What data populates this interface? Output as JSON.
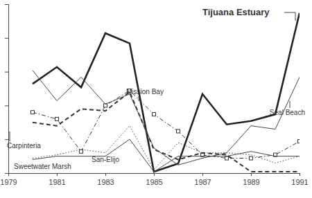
{
  "chart_data": {
    "type": "line",
    "x": [
      1980,
      1981,
      1982,
      1983,
      1984,
      1985,
      1986,
      1987,
      1988,
      1989,
      1990,
      1991
    ],
    "xlim": [
      1979,
      1991
    ],
    "xticks": [
      1979,
      1981,
      1983,
      1985,
      1987,
      1989,
      1991
    ],
    "ylim": [
      0,
      5
    ],
    "yticks": [
      0,
      1,
      2,
      3,
      4
    ],
    "tick_labels": "x",
    "series": [
      {
        "name": "Tijuana Estuary",
        "color": "#222222",
        "line_style": "solid",
        "values": [
          2.64,
          3.14,
          2.54,
          4.14,
          3.84,
          0.04,
          0.28,
          2.34,
          1.44,
          1.54,
          1.74,
          4.74
        ]
      },
      {
        "name": "Mission Bay",
        "color": "#333333",
        "line_style": "dashdot",
        "marker": "square",
        "values": [
          1.8,
          1.6,
          0.64,
          2.0,
          2.44,
          1.74,
          1.24,
          0.54,
          0.44,
          0.44,
          0.54,
          0.94
        ]
      },
      {
        "name": "Carpinteria",
        "color": "#333333",
        "line_style": "dashed",
        "values": [
          1.5,
          1.4,
          1.9,
          1.84,
          2.4,
          0.7,
          0.4,
          0.6,
          0.54,
          0.04,
          0.04,
          0.04
        ]
      },
      {
        "name": "Seal Beach",
        "color": "#444444",
        "line_style": "solid",
        "values": [
          3.04,
          2.14,
          2.84,
          2.04,
          2.34,
          0.74,
          0.24,
          0.44,
          0.6,
          1.4,
          1.3,
          2.84
        ]
      },
      {
        "name": "San-Elijo",
        "color": "#444444",
        "line_style": "dotted",
        "values": [
          0.44,
          0.54,
          0.7,
          0.6,
          1.4,
          0.1,
          0.9,
          0.6,
          0.6,
          0.54,
          0.3,
          0.5
        ]
      },
      {
        "name": "Sweetwater Marsh",
        "color": "#444444",
        "line_style": "solid",
        "values": [
          0.4,
          0.5,
          0.5,
          0.5,
          1.0,
          0.04,
          0.5,
          0.5,
          0.5,
          0.64,
          0.5,
          0.5
        ]
      }
    ]
  }
}
